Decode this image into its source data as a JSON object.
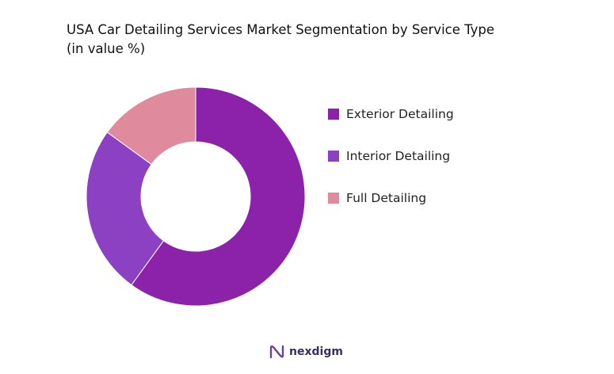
{
  "chart_data": {
    "type": "pie",
    "title": "USA Car Detailing Services Market Segmentation by Service Type",
    "subtitle": "(in value %)",
    "categories": [
      "Exterior Detailing",
      "Interior Detailing",
      "Full Detailing"
    ],
    "values": [
      60,
      25,
      15
    ],
    "colors": [
      "#8c22aa",
      "#8b41c2",
      "#df8a9d"
    ],
    "donut": true,
    "legend_placement": "right"
  },
  "brand": {
    "name": "nexdigm",
    "icon": "nexdigm-logo-icon"
  }
}
